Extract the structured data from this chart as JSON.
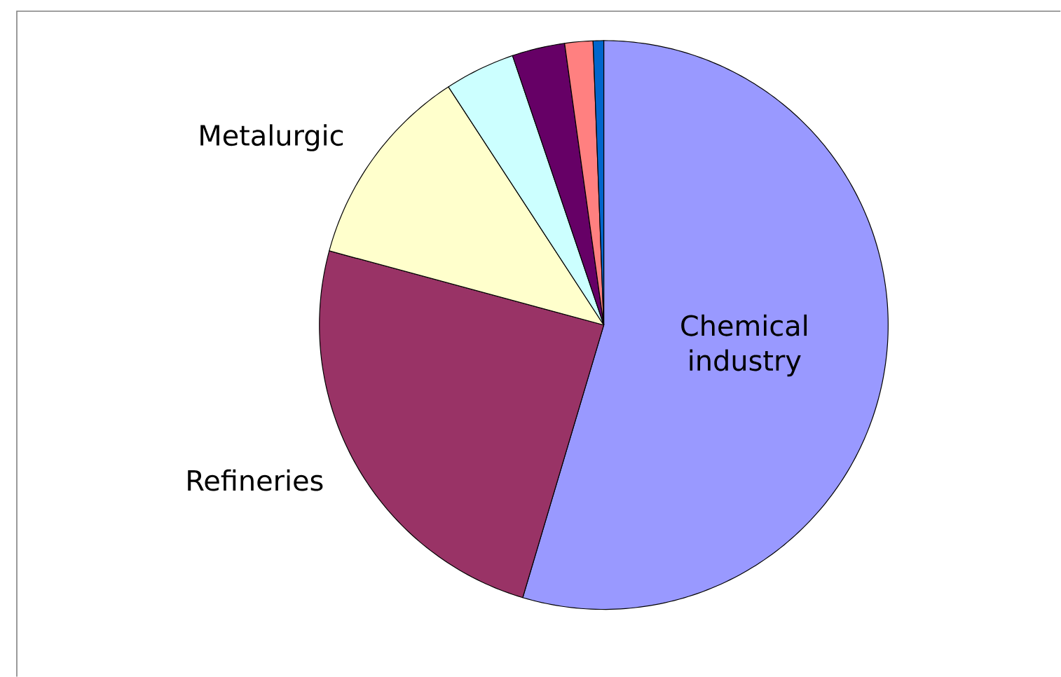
{
  "chart_data": {
    "type": "pie",
    "categories": [
      "Chemical industry",
      "Refineries",
      "Metalurgic",
      null,
      null,
      null,
      null
    ],
    "values": [
      54.6,
      24.6,
      11.6,
      4.0,
      3.0,
      1.6,
      0.6
    ],
    "colors": [
      "#9999ff",
      "#993366",
      "#ffffcc",
      "#ccffff",
      "#660066",
      "#ff8080",
      "#0066cc"
    ]
  }
}
